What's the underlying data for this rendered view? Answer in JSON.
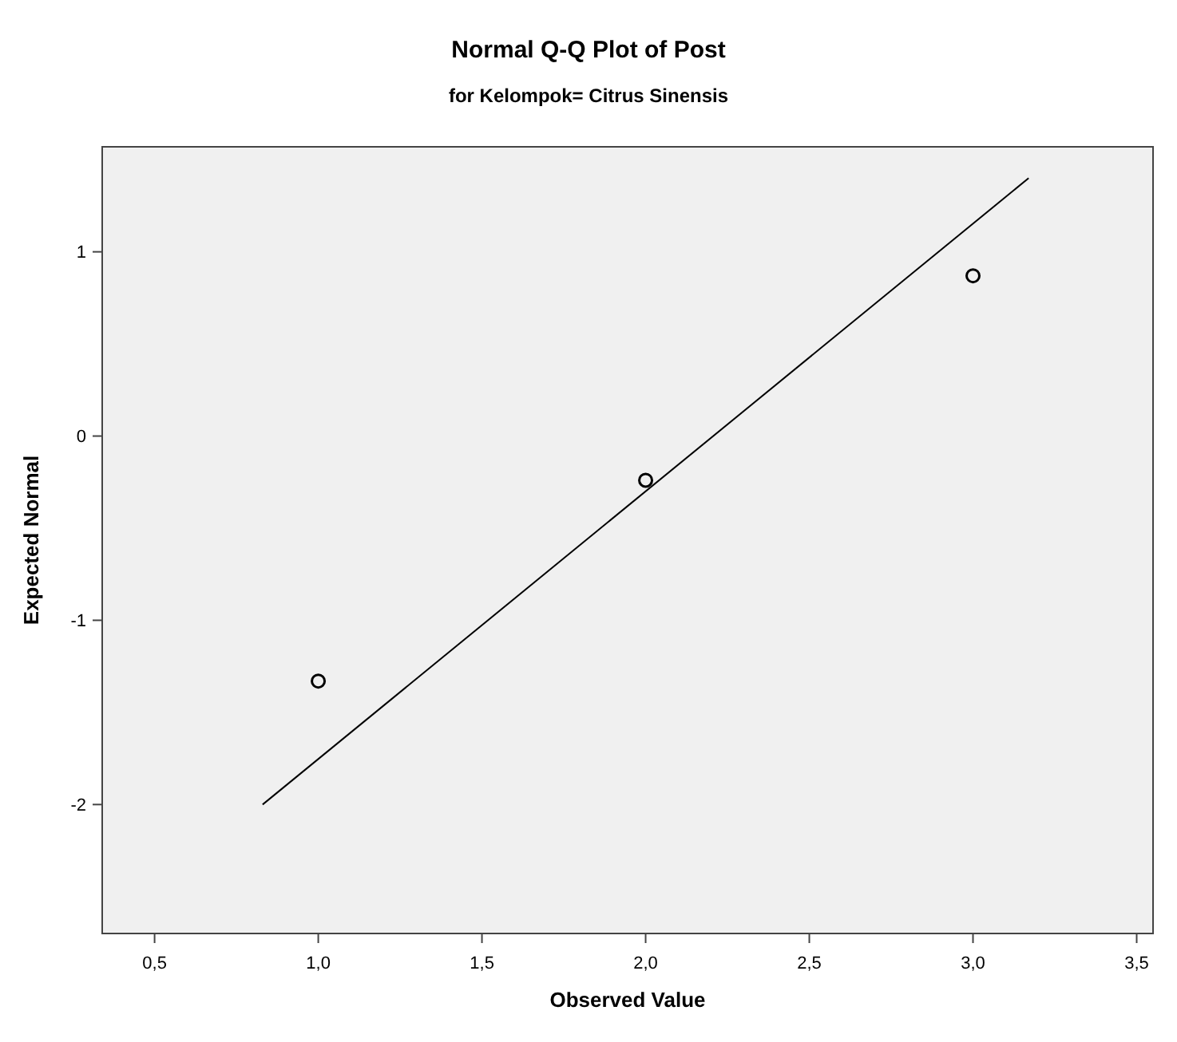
{
  "chart_data": {
    "type": "scatter",
    "title": "Normal Q-Q Plot of Post",
    "subtitle": "for Kelompok= Citrus Sinensis",
    "xlabel": "Observed Value",
    "ylabel": "Expected Normal",
    "series": [
      {
        "color": "#000000",
        "x": [
          1.0,
          2.0,
          3.0
        ],
        "values": [
          -1.33,
          -0.24,
          0.87
        ],
        "marker": "circle"
      },
      {
        "type": "line",
        "color": "#000000",
        "x": [
          0.83,
          3.17
        ],
        "values": [
          -2.0,
          1.4
        ],
        "marker": "none"
      }
    ],
    "xlim": [
      0.34,
      3.55
    ],
    "ylim": [
      -2.7,
      1.57
    ],
    "xticks": [
      {
        "value": 0.5,
        "label": "0,5"
      },
      {
        "value": 1,
        "label": "1,0"
      },
      {
        "value": 1.5,
        "label": "1,5"
      },
      {
        "value": 2,
        "label": "2,0"
      },
      {
        "value": 2.5,
        "label": "2,5"
      },
      {
        "value": 3,
        "label": "3,0"
      },
      {
        "value": 3.5,
        "label": "3,5"
      }
    ],
    "yticks": [
      -2,
      -1,
      0,
      1
    ]
  }
}
